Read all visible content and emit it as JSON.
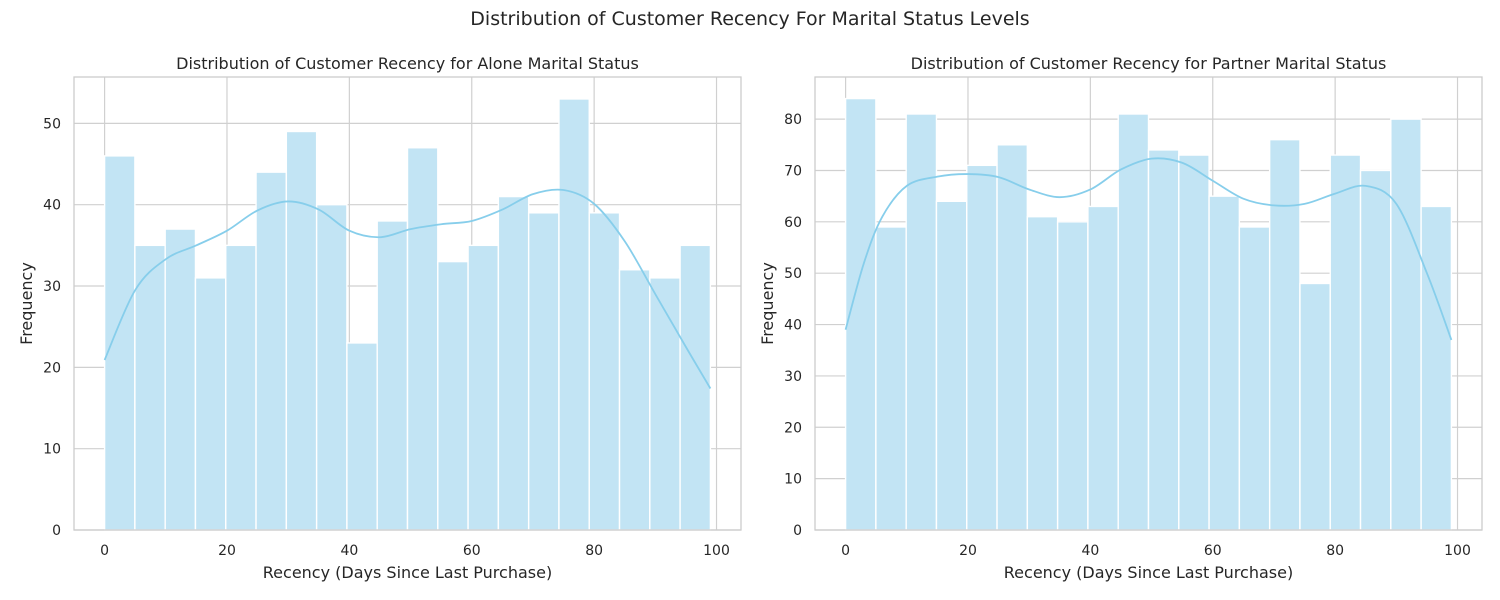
{
  "suptitle": "Distribution of Customer Recency For Marital Status Levels",
  "style": {
    "bar_color": "#c2e4f4",
    "bar_edge": "#ffffff",
    "kde_color": "#87ceeb",
    "grid_color": "#d0d0d0",
    "spine_color": "#cccccc"
  },
  "chart_data": [
    {
      "type": "bar",
      "title": "Distribution of Customer Recency for Alone Marital Status",
      "xlabel": "Recency (Days Since Last Purchase)",
      "ylabel": "Frequency",
      "xlim": [
        -5,
        104
      ],
      "ylim": [
        0,
        55.7
      ],
      "xticks": [
        0,
        20,
        40,
        60,
        80,
        100
      ],
      "yticks": [
        0,
        10,
        20,
        30,
        40,
        50
      ],
      "bin_edges": [
        0,
        4.95,
        9.9,
        14.85,
        19.8,
        24.75,
        29.7,
        34.65,
        39.6,
        44.55,
        49.5,
        54.45,
        59.4,
        64.35,
        69.3,
        74.25,
        79.2,
        84.15,
        89.1,
        94.05,
        99
      ],
      "counts": [
        46,
        35,
        37,
        31,
        35,
        44,
        49,
        40,
        23,
        38,
        47,
        33,
        35,
        41,
        39,
        53,
        39,
        32,
        31,
        35
      ],
      "kde": {
        "x": [
          0,
          5,
          10,
          15,
          20,
          25,
          30,
          35,
          40,
          45,
          50,
          55,
          60,
          65,
          70,
          75,
          80,
          85,
          90,
          95,
          99
        ],
        "y": [
          20.9,
          29.5,
          33.3,
          35.0,
          36.8,
          39.3,
          40.4,
          39.4,
          36.8,
          36.0,
          37.0,
          37.6,
          38.0,
          39.4,
          41.3,
          41.8,
          40.1,
          35.5,
          29.0,
          22.5,
          17.4
        ]
      },
      "grid": true,
      "legend": "none"
    },
    {
      "type": "bar",
      "title": "Distribution of Customer Recency for Partner Marital Status",
      "xlabel": "Recency (Days Since Last Purchase)",
      "ylabel": "Frequency",
      "xlim": [
        -5,
        104
      ],
      "ylim": [
        0,
        88.2
      ],
      "xticks": [
        0,
        20,
        40,
        60,
        80,
        100
      ],
      "yticks": [
        0,
        10,
        20,
        30,
        40,
        50,
        60,
        70,
        80
      ],
      "bin_edges": [
        0,
        4.95,
        9.9,
        14.85,
        19.8,
        24.75,
        29.7,
        34.65,
        39.6,
        44.55,
        49.5,
        54.45,
        59.4,
        64.35,
        69.3,
        74.25,
        79.2,
        84.15,
        89.1,
        94.05,
        99
      ],
      "counts": [
        84,
        59,
        81,
        64,
        71,
        75,
        61,
        60,
        63,
        81,
        74,
        73,
        65,
        59,
        76,
        48,
        73,
        70,
        80,
        63
      ],
      "kde": {
        "x": [
          0,
          3,
          6,
          10,
          15,
          20,
          25,
          30,
          35,
          40,
          45,
          50,
          55,
          60,
          65,
          70,
          75,
          80,
          85,
          90,
          95,
          99
        ],
        "y": [
          39.0,
          52.0,
          61.0,
          67.0,
          68.8,
          69.3,
          68.7,
          66.3,
          64.8,
          66.3,
          70.2,
          72.3,
          71.5,
          68.0,
          64.5,
          63.2,
          63.5,
          65.5,
          67.0,
          63.5,
          50.0,
          37.0
        ]
      },
      "grid": true,
      "legend": "none"
    }
  ]
}
